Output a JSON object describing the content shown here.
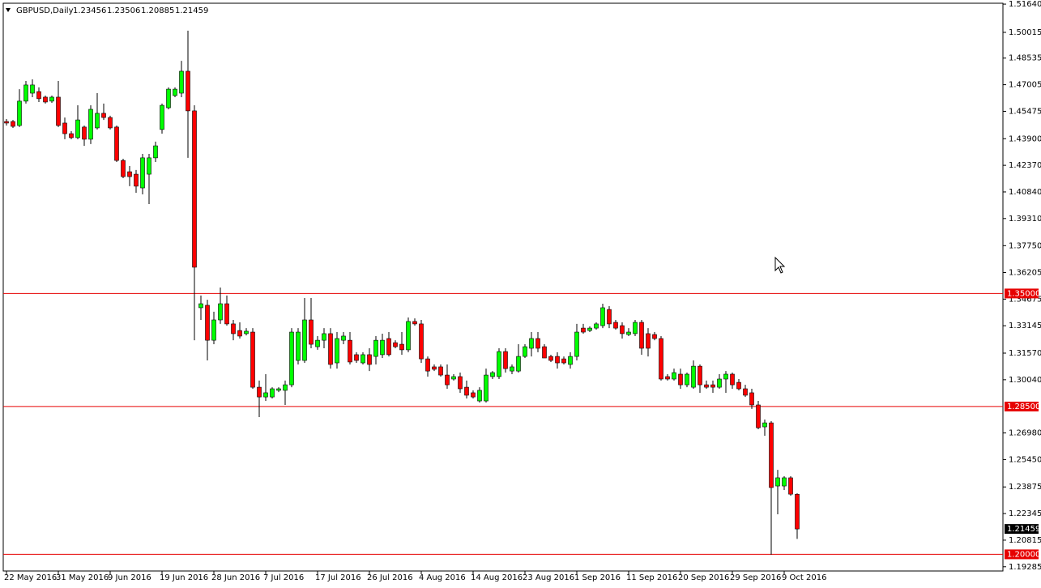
{
  "chart_data": {
    "type": "candlestick",
    "title": "GBPUSD,Daily",
    "up_color": "#00ff00",
    "down_color": "#ff0000",
    "categories": [
      "22 May 2016",
      null,
      null,
      null,
      null,
      null,
      null,
      null,
      "31 May 2016",
      null,
      null,
      null,
      null,
      null,
      null,
      null,
      "9 Jun 2016",
      null,
      null,
      null,
      null,
      null,
      null,
      null,
      "19 Jun 2016",
      null,
      null,
      null,
      null,
      null,
      null,
      null,
      "28 Jun 2016",
      null,
      null,
      null,
      null,
      null,
      null,
      null,
      "7 Jul 2016",
      null,
      null,
      null,
      null,
      null,
      null,
      null,
      "17 Jul 2016",
      null,
      null,
      null,
      null,
      null,
      null,
      null,
      "26 Jul 2016",
      null,
      null,
      null,
      null,
      null,
      null,
      null,
      "4 Aug 2016",
      null,
      null,
      null,
      null,
      null,
      null,
      null,
      "14 Aug 2016",
      null,
      null,
      null,
      null,
      null,
      null,
      null,
      "23 Aug 2016",
      null,
      null,
      null,
      null,
      null,
      null,
      null,
      "1 Sep 2016",
      null,
      null,
      null,
      null,
      null,
      null,
      null,
      "11 Sep 2016",
      null,
      null,
      null,
      null,
      null,
      null,
      null,
      "20 Sep 2016",
      null,
      null,
      null,
      null,
      null,
      null,
      null,
      "29 Sep 2016",
      null,
      null,
      null,
      null,
      null,
      null,
      null,
      "9 Oct 2016",
      null,
      null
    ],
    "open": [
      1.4489,
      1.4489,
      1.4466,
      1.4606,
      1.4652,
      1.4661,
      1.4629,
      1.4606,
      1.4629,
      1.448,
      1.4419,
      1.4396,
      1.4457,
      1.4387,
      1.4452,
      1.4536,
      1.4512,
      1.4457,
      1.4265,
      1.42,
      1.4186,
      1.4107,
      1.4186,
      1.428,
      1.4443,
      1.4568,
      1.4638,
      1.4652,
      1.4778,
      1.455,
      1.3418,
      1.3432,
      1.3231,
      1.3348,
      1.3441,
      1.3325,
      1.3287,
      1.3269,
      1.3278,
      1.2961,
      1.2905,
      1.2905,
      1.2943,
      1.2943,
      1.2975,
      1.3115,
      1.3115,
      1.3348,
      1.3194,
      1.3231,
      1.3269,
      1.3101,
      1.3231,
      1.3231,
      1.3148,
      1.3101,
      1.3148,
      1.3138,
      1.3148,
      1.3241,
      1.3217,
      1.3208,
      1.3176,
      1.3339,
      1.3325,
      1.3124,
      1.3078,
      1.3078,
      1.3031,
      1.3008,
      1.3022,
      1.2961,
      1.2929,
      1.2882,
      1.2882,
      1.3022,
      1.3022,
      1.3166,
      1.3054,
      1.3054,
      1.3138,
      1.3185,
      1.3241,
      1.3194,
      1.3138,
      1.3138,
      1.3124,
      1.3092,
      1.3138,
      1.3301,
      1.3287,
      1.3301,
      1.3315,
      1.3408,
      1.3334,
      1.3315,
      1.3264,
      1.3269,
      1.3334,
      1.3269,
      1.3264,
      1.3241,
      1.3022,
      1.3008,
      1.3036,
      1.2975,
      1.2961,
      1.3082,
      1.2975,
      1.2975,
      1.2961,
      1.3008,
      1.3036,
      1.2989,
      1.2952,
      1.2929,
      1.2859,
      1.2733,
      1.2756,
      1.2393,
      1.2393,
      1.244,
      1.23456
    ],
    "high": [
      1.4503,
      1.4498,
      1.4675,
      1.4722,
      1.4731,
      1.4685,
      1.4638,
      1.4638,
      1.4722,
      1.4512,
      1.4433,
      1.4582,
      1.4466,
      1.4582,
      1.4652,
      1.4592,
      1.4522,
      1.4466,
      1.4275,
      1.4233,
      1.421,
      1.4303,
      1.4303,
      1.4373,
      1.4592,
      1.4685,
      1.4685,
      1.4838,
      1.5011,
      1.4582,
      1.3488,
      1.3464,
      1.3395,
      1.3534,
      1.3488,
      1.3348,
      1.3334,
      1.3301,
      1.3301,
      1.2999,
      1.3036,
      1.2961,
      1.2961,
      1.2999,
      1.3301,
      1.3301,
      1.3474,
      1.3474,
      1.3255,
      1.3301,
      1.3301,
      1.3278,
      1.3278,
      1.3278,
      1.3162,
      1.3162,
      1.3185,
      1.3255,
      1.3269,
      1.3278,
      1.3231,
      1.3278,
      1.3362,
      1.3357,
      1.3348,
      1.3138,
      1.3092,
      1.3092,
      1.3092,
      1.3036,
      1.3045,
      1.2999,
      1.2943,
      1.2961,
      1.3068,
      1.3054,
      1.3185,
      1.3185,
      1.3092,
      1.3208,
      1.3208,
      1.3278,
      1.3278,
      1.3208,
      1.3148,
      1.3162,
      1.3138,
      1.3162,
      1.3325,
      1.3325,
      1.3311,
      1.3334,
      1.3441,
      1.3427,
      1.3348,
      1.3334,
      1.3301,
      1.3348,
      1.3348,
      1.3301,
      1.3278,
      1.3255,
      1.3036,
      1.3068,
      1.3068,
      1.3045,
      1.3115,
      1.3092,
      1.2999,
      1.2999,
      1.3036,
      1.3054,
      1.3045,
      1.3008,
      1.2975,
      1.2952,
      1.2882,
      1.2775,
      1.2766,
      1.2486,
      1.2449,
      1.2449,
      1.23506
    ],
    "low": [
      1.4466,
      1.4452,
      1.4457,
      1.4592,
      1.4629,
      1.4601,
      1.4592,
      1.4596,
      1.4457,
      1.4387,
      1.4387,
      1.4387,
      1.4349,
      1.4359,
      1.4443,
      1.4498,
      1.4443,
      1.4256,
      1.4163,
      1.4117,
      1.4079,
      1.407,
      1.4014,
      1.4256,
      1.4419,
      1.4559,
      1.4629,
      1.4629,
      1.428,
      1.3231,
      1.3348,
      1.3115,
      1.3208,
      1.3325,
      1.3315,
      1.3231,
      1.3241,
      1.3259,
      1.2952,
      1.2789,
      1.2882,
      1.2896,
      1.2933,
      1.2859,
      1.2961,
      1.3092,
      1.3101,
      1.3185,
      1.3176,
      1.3185,
      1.3068,
      1.3068,
      1.3208,
      1.3092,
      1.3101,
      1.3092,
      1.3054,
      1.3092,
      1.3129,
      1.3138,
      1.3185,
      1.3148,
      1.3162,
      1.3315,
      1.3101,
      1.3022,
      1.3054,
      1.3022,
      1.2952,
      1.2999,
      1.2929,
      1.2896,
      1.2896,
      1.2873,
      1.2873,
      1.3008,
      1.3008,
      1.3045,
      1.3036,
      1.3045,
      1.3129,
      1.3138,
      1.3162,
      1.3129,
      1.3106,
      1.3068,
      1.3092,
      1.3068,
      1.3115,
      1.3269,
      1.3278,
      1.3292,
      1.3301,
      1.3301,
      1.3292,
      1.3241,
      1.3255,
      1.3255,
      1.3148,
      1.3138,
      1.3231,
      1.2999,
      1.2999,
      1.2999,
      1.2952,
      1.2961,
      1.2952,
      1.2929,
      1.2952,
      1.2929,
      1.2952,
      1.2929,
      1.2952,
      1.2943,
      1.2905,
      1.2836,
      1.2719,
      1.2682,
      1.1998,
      1.223,
      1.237,
      1.2337,
      1.20885
    ],
    "close": [
      1.448,
      1.4461,
      1.4606,
      1.4699,
      1.4699,
      1.462,
      1.4601,
      1.4629,
      1.4466,
      1.4419,
      1.4396,
      1.4498,
      1.4387,
      1.4559,
      1.4536,
      1.4512,
      1.4452,
      1.4265,
      1.4172,
      1.4172,
      1.4117,
      1.428,
      1.428,
      1.4349,
      1.4582,
      1.4675,
      1.4675,
      1.4778,
      1.455,
      1.3651,
      1.3441,
      1.3231,
      1.3348,
      1.3441,
      1.3325,
      1.3269,
      1.3255,
      1.3283,
      1.2961,
      1.2905,
      1.2929,
      1.2952,
      1.2952,
      1.2975,
      1.3278,
      1.3278,
      1.3348,
      1.3208,
      1.3231,
      1.3269,
      1.3092,
      1.3241,
      1.3255,
      1.3106,
      1.3115,
      1.3148,
      1.3092,
      1.3231,
      1.3231,
      1.3148,
      1.3194,
      1.3176,
      1.3339,
      1.3325,
      1.3124,
      1.3054,
      1.3064,
      1.3031,
      1.2975,
      1.3022,
      1.2952,
      1.2915,
      1.2905,
      1.2943,
      1.3031,
      1.3045,
      1.3166,
      1.3068,
      1.3078,
      1.3138,
      1.3194,
      1.3241,
      1.3185,
      1.3129,
      1.3115,
      1.3101,
      1.3101,
      1.3138,
      1.3278,
      1.3278,
      1.3301,
      1.3325,
      1.3418,
      1.3325,
      1.3301,
      1.3269,
      1.3278,
      1.3334,
      1.3185,
      1.3185,
      1.3241,
      1.3008,
      1.3008,
      1.3045,
      1.2975,
      1.3036,
      1.3082,
      1.2975,
      1.2961,
      1.2961,
      1.3008,
      1.3036,
      1.2975,
      1.2952,
      1.2915,
      1.2859,
      1.2728,
      1.2756,
      1.2384,
      1.244,
      1.244,
      1.2346,
      1.21459
    ],
    "ylim": [
      1.19042,
      1.5169
    ],
    "yticks": [
      {
        "value": 1.5164,
        "label": "1.51640"
      },
      {
        "value": 1.50015,
        "label": "1.50015"
      },
      {
        "value": 1.48535,
        "label": "1.48535"
      },
      {
        "value": 1.47005,
        "label": "1.47005"
      },
      {
        "value": 1.45475,
        "label": "1.45475"
      },
      {
        "value": 1.439,
        "label": "1.43900"
      },
      {
        "value": 1.4237,
        "label": "1.42370"
      },
      {
        "value": 1.4084,
        "label": "1.40840"
      },
      {
        "value": 1.3931,
        "label": "1.39310"
      },
      {
        "value": 1.3775,
        "label": "1.37750"
      },
      {
        "value": 1.36205,
        "label": "1.36205"
      },
      {
        "value": 1.34675,
        "label": "1.34675"
      },
      {
        "value": 1.33145,
        "label": "1.33145"
      },
      {
        "value": 1.3157,
        "label": "1.31570"
      },
      {
        "value": 1.3004,
        "label": "1.30040"
      },
      {
        "value": 1.2698,
        "label": "1.26980"
      },
      {
        "value": 1.2545,
        "label": "1.25450"
      },
      {
        "value": 1.23875,
        "label": "1.23875"
      },
      {
        "value": 1.22345,
        "label": "1.22345"
      },
      {
        "value": 1.20815,
        "label": "1.20815"
      },
      {
        "value": 1.19285,
        "label": "1.19285"
      }
    ],
    "levels": [
      {
        "value": 1.35,
        "label": "1.35000"
      },
      {
        "value": 1.285,
        "label": "1.28500"
      },
      {
        "value": 1.2,
        "label": "1.20000"
      }
    ],
    "level_color": "#e60000"
  }
}
